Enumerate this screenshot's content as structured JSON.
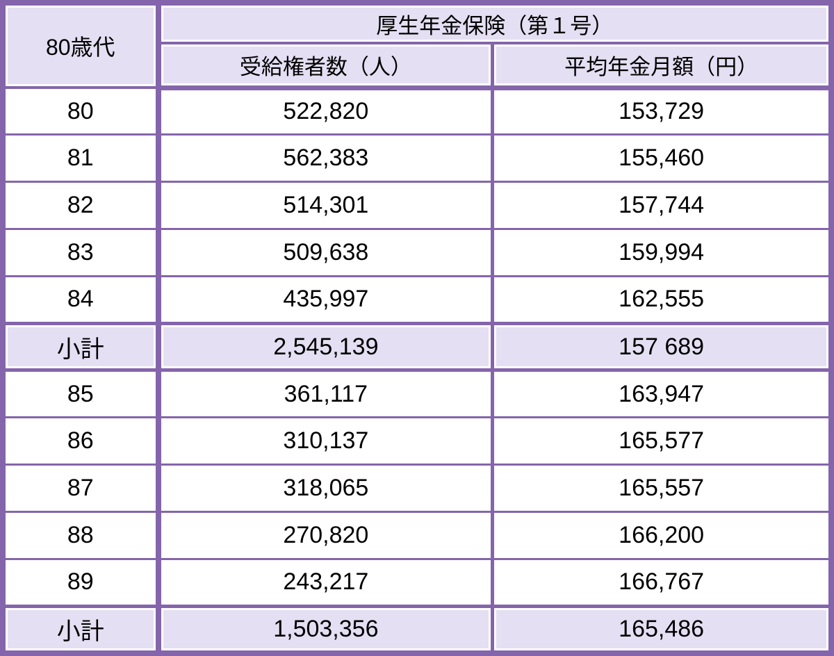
{
  "table": {
    "group_label": "80歳代",
    "span_header": "厚生年金保険（第１号）",
    "col_headers": [
      "受給権者数（人）",
      "平均年金月額（円）"
    ],
    "rows": [
      {
        "type": "data",
        "age": "80",
        "count": "522,820",
        "avg": "153,729"
      },
      {
        "type": "data",
        "age": "81",
        "count": "562,383",
        "avg": "155,460"
      },
      {
        "type": "data",
        "age": "82",
        "count": "514,301",
        "avg": "157,744"
      },
      {
        "type": "data",
        "age": "83",
        "count": "509,638",
        "avg": "159,994"
      },
      {
        "type": "data",
        "age": "84",
        "count": "435,997",
        "avg": "162,555"
      },
      {
        "type": "subtotal",
        "age": "小計",
        "count": "2,545,139",
        "avg": "157 689"
      },
      {
        "type": "data",
        "age": "85",
        "count": "361,117",
        "avg": "163,947"
      },
      {
        "type": "data",
        "age": "86",
        "count": "310,137",
        "avg": "165,577"
      },
      {
        "type": "data",
        "age": "87",
        "count": "318,065",
        "avg": "165,557"
      },
      {
        "type": "data",
        "age": "88",
        "count": "270,820",
        "avg": "166,200"
      },
      {
        "type": "data",
        "age": "89",
        "count": "243,217",
        "avg": "166,767"
      },
      {
        "type": "subtotal",
        "age": "小計",
        "count": "1,503,356",
        "avg": "165,486"
      }
    ]
  },
  "colors": {
    "border_purple": "#8465ab",
    "cell_fill_lavender": "#e4dff2",
    "text": "#000000",
    "background": "#ffffff"
  }
}
